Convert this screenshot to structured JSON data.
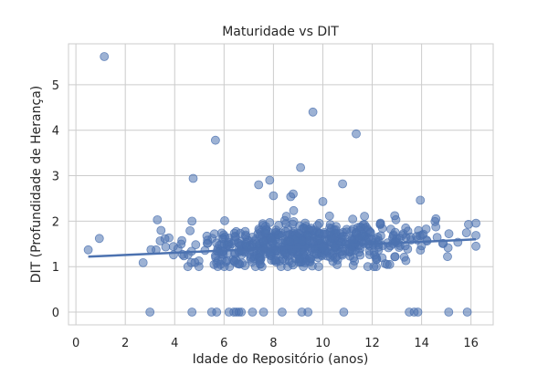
{
  "chart_data": {
    "type": "scatter",
    "title": "Maturidade vs DIT",
    "xlabel": "Idade do Repositório (anos)",
    "ylabel": "DIT (Profundidade de Herança)",
    "xlim": [
      -0.3,
      16.9
    ],
    "ylim": [
      -0.28,
      5.9
    ],
    "xticks": [
      0,
      2,
      4,
      6,
      8,
      10,
      12,
      14,
      16
    ],
    "yticks": [
      0,
      1,
      2,
      3,
      4,
      5
    ],
    "grid": true,
    "style": "whitegrid",
    "series": [
      {
        "marker_color": "#4c72b0",
        "marker_alpha": 0.55,
        "seed": 42,
        "outliers": [
          {
            "x": 1.15,
            "y": 5.62
          },
          {
            "x": 9.6,
            "y": 4.4
          },
          {
            "x": 11.35,
            "y": 3.92
          },
          {
            "x": 5.65,
            "y": 3.78
          },
          {
            "x": 9.1,
            "y": 3.18
          },
          {
            "x": 4.75,
            "y": 2.94
          },
          {
            "x": 7.85,
            "y": 2.9
          },
          {
            "x": 10.8,
            "y": 2.82
          },
          {
            "x": 7.4,
            "y": 2.8
          },
          {
            "x": 8.8,
            "y": 2.6
          },
          {
            "x": 8.7,
            "y": 2.54
          },
          {
            "x": 8.0,
            "y": 2.56
          },
          {
            "x": 10.0,
            "y": 2.43
          },
          {
            "x": 13.95,
            "y": 2.46
          },
          {
            "x": 3.3,
            "y": 2.03
          },
          {
            "x": 4.7,
            "y": 2.0
          },
          {
            "x": 0.95,
            "y": 1.62
          },
          {
            "x": 0.5,
            "y": 1.37
          },
          {
            "x": 16.2,
            "y": 1.45
          },
          {
            "x": 15.9,
            "y": 1.93
          },
          {
            "x": 15.05,
            "y": 1.22
          }
        ],
        "zeros": [
          3.0,
          4.7,
          5.5,
          5.7,
          6.2,
          6.4,
          6.5,
          6.6,
          6.7,
          7.15,
          7.6,
          8.35,
          9.15,
          9.4,
          10.85,
          13.5,
          13.7,
          13.85,
          15.1,
          15.85
        ],
        "cluster": {
          "count": 620,
          "x_mean": 9.3,
          "x_std": 2.5,
          "x_range": [
            0.5,
            16.2
          ],
          "y_mean_start": 1.25,
          "y_slope": 0.027,
          "y_std": 0.26,
          "y_range": [
            1.0,
            2.3
          ]
        },
        "trend_line": {
          "x": [
            0.5,
            16.2
          ],
          "y": [
            1.22,
            1.6
          ],
          "color": "#4c72b0"
        }
      }
    ]
  }
}
